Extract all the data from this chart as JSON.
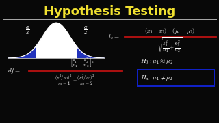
{
  "background_color": "#080808",
  "title": "Hypothesis Testing",
  "title_color": "#f0e030",
  "title_fontsize": 13,
  "separator_color": "#aaaaaa",
  "text_color": "#ffffff",
  "bell_fill_color": "#ffffff",
  "bell_shade_color": "#2233bb",
  "red_line_color": "#bb1111",
  "blue_box_color": "#1122cc",
  "figsize": [
    3.2,
    1.8
  ],
  "dpi": 100
}
